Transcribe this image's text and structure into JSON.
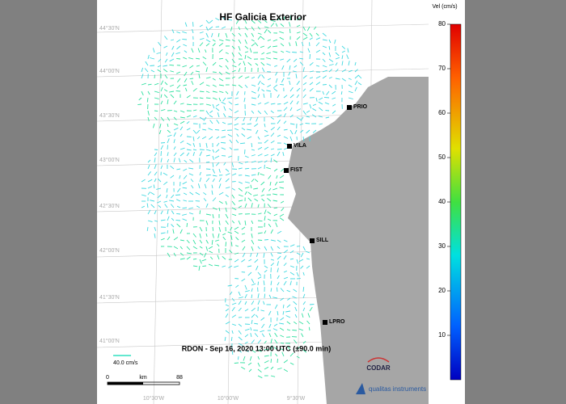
{
  "title": "HF Galicia Exterior",
  "stations": [
    {
      "label": "PRIO"
    },
    {
      "label": "VILA"
    },
    {
      "label": "FIST"
    },
    {
      "label": "SILL"
    },
    {
      "label": "LPRO"
    }
  ],
  "timestamp": "RDON - Sep 16, 2020 13:00 UTC (±90.0 min)",
  "vector_scale": "40.0 cm/s",
  "distance_scale": {
    "start": "0",
    "unit": "km",
    "end": "88"
  },
  "latitude_labels": [
    "44°30'N",
    "44°00'N",
    "43°30'N",
    "43°00'N",
    "42°30'N",
    "42°00'N",
    "41°30'N",
    "41°00'N"
  ],
  "longitude_labels": [
    "10°30'W",
    "10°00'W",
    "9°30'W"
  ],
  "colorbar": {
    "label": "Vel (cm/s)",
    "range": [
      0,
      80
    ],
    "ticks": [
      10,
      20,
      30,
      40,
      50,
      60,
      70,
      80
    ]
  },
  "logos": {
    "codar": "CODAR",
    "qualitas": "qualitas instruments"
  }
}
